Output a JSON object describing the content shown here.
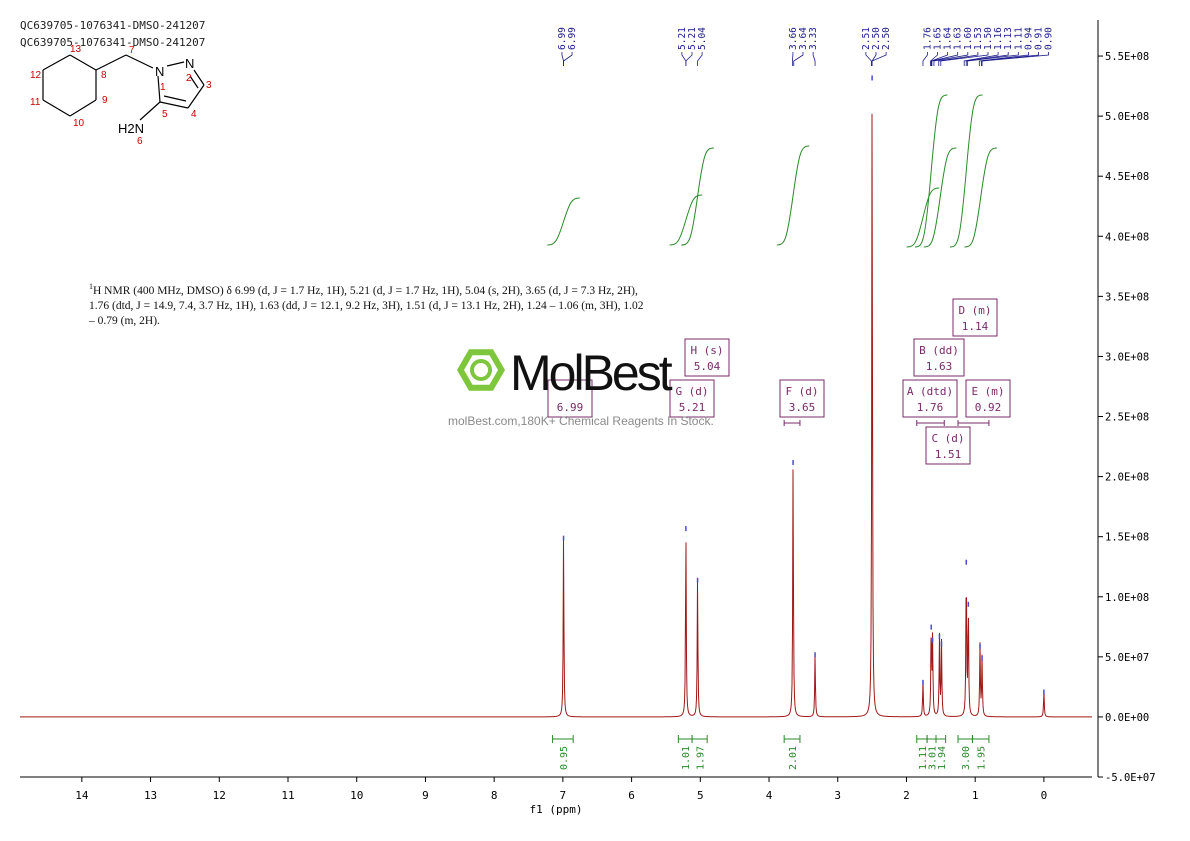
{
  "sample": {
    "line1": "QC639705-1076341-DMSO-241207",
    "line2": "QC639705-1076341-DMSO-241207"
  },
  "nmr_text": {
    "prefix": "1",
    "body": "H NMR (400 MHz, DMSO) δ 6.99 (d, J = 1.7 Hz, 1H), 5.21 (d, J = 1.7 Hz, 1H), 5.04 (s, 2H), 3.65 (d, J = 7.3 Hz, 2H), 1.76 (dtd, J = 14.9, 7.4, 3.7 Hz, 1H), 1.63 (dd, J = 12.1, 9.2 Hz, 3H), 1.51 (d, J = 13.1 Hz, 2H), 1.24 – 1.06 (m, 3H), 1.02 – 0.79 (m, 2H)."
  },
  "watermark": {
    "name": "MolBest",
    "url": "molBest.com,180K+ Chemical Reagents In Stock."
  },
  "structure": {
    "atom_labels": [
      "1",
      "2",
      "3",
      "4",
      "5",
      "6",
      "7",
      "8",
      "9",
      "10",
      "11",
      "12",
      "13"
    ],
    "hetero_labels": [
      "N",
      "N",
      "H2N"
    ],
    "colors": {
      "atom_numbers": "#cc0000",
      "bonds": "#000000"
    }
  },
  "chart_data": {
    "type": "line",
    "xlabel": "f1 (ppm)",
    "xlim": [
      14.9,
      -0.7
    ],
    "ylim": [
      -50000000,
      580000000
    ],
    "x_ticks": [
      14,
      13,
      12,
      11,
      10,
      9,
      8,
      7,
      6,
      5,
      4,
      3,
      2,
      1,
      0
    ],
    "x_tick_labels": [
      "14",
      "13",
      "12",
      "11",
      "10",
      "9",
      "8",
      "7",
      "6",
      "5",
      "4",
      "3",
      "2",
      "1",
      "0"
    ],
    "y_ticks": [
      550000000,
      500000000,
      450000000,
      400000000,
      350000000,
      300000000,
      250000000,
      200000000,
      150000000,
      100000000,
      50000000,
      0,
      -50000000
    ],
    "y_tick_labels": [
      "5.5E+08",
      "5.0E+08",
      "4.5E+08",
      "4.0E+08",
      "3.5E+08",
      "3.0E+08",
      "2.5E+08",
      "2.0E+08",
      "1.5E+08",
      "1.0E+08",
      "5.0E+07",
      "0.0E+00",
      "-5.0E+07"
    ],
    "peak_picks": [
      "6.99",
      "6.99",
      "5.21",
      "5.21",
      "5.04",
      "3.66",
      "3.64",
      "3.33",
      "2.51",
      "2.50",
      "2.50",
      "1.76",
      "1.65",
      "1.64",
      "1.63",
      "1.60",
      "1.53",
      "1.50",
      "1.16",
      "1.13",
      "1.11",
      "0.94",
      "0.91",
      "0.90"
    ],
    "spectrum_peaks": [
      {
        "ppm": 6.99,
        "height": 150000000
      },
      {
        "ppm": 5.21,
        "height": 158000000
      },
      {
        "ppm": 5.04,
        "height": 115000000
      },
      {
        "ppm": 3.65,
        "height": 213000000
      },
      {
        "ppm": 3.33,
        "height": 53000000
      },
      {
        "ppm": 2.5,
        "height": 533000000
      },
      {
        "ppm": 1.76,
        "height": 30000000
      },
      {
        "ppm": 1.64,
        "height": 76000000
      },
      {
        "ppm": 1.62,
        "height": 65000000
      },
      {
        "ppm": 1.52,
        "height": 68000000
      },
      {
        "ppm": 1.49,
        "height": 62000000
      },
      {
        "ppm": 1.13,
        "height": 130000000
      },
      {
        "ppm": 1.1,
        "height": 95000000
      },
      {
        "ppm": 0.93,
        "height": 60000000
      },
      {
        "ppm": 0.9,
        "height": 50000000
      },
      {
        "ppm": 0.0,
        "height": 22000000
      }
    ],
    "multiplets": [
      {
        "label": "H (s)",
        "value": "5.04"
      },
      {
        "label": "G (d)",
        "value": "5.21"
      },
      {
        "label": "F (d)",
        "value": "3.65"
      },
      {
        "label": "",
        "value": "6.99"
      },
      {
        "label": "D (m)",
        "value": "1.14"
      },
      {
        "label": "B (dd)",
        "value": "1.63"
      },
      {
        "label": "A (dtd)",
        "value": "1.76"
      },
      {
        "label": "E (m)",
        "value": "0.92"
      },
      {
        "label": "C (d)",
        "value": "1.51"
      }
    ],
    "integrals": [
      {
        "from": 7.15,
        "to": 6.85,
        "value": "0.95"
      },
      {
        "from": 5.32,
        "to": 5.12,
        "value": "1.01"
      },
      {
        "from": 5.12,
        "to": 4.9,
        "value": "1.97"
      },
      {
        "from": 3.78,
        "to": 3.55,
        "value": "2.01"
      },
      {
        "from": 1.85,
        "to": 1.7,
        "value": "1.11"
      },
      {
        "from": 1.7,
        "to": 1.57,
        "value": "3.01"
      },
      {
        "from": 1.57,
        "to": 1.43,
        "value": "1.94"
      },
      {
        "from": 1.25,
        "to": 1.04,
        "value": "3.00"
      },
      {
        "from": 1.04,
        "to": 0.8,
        "value": "1.95"
      }
    ],
    "colors": {
      "spectrum": "#a01818",
      "integral": "#2a8a2a",
      "labels": "#7a2a6a",
      "peak_picks": "#1c1c8c",
      "axes": "#000000"
    }
  }
}
